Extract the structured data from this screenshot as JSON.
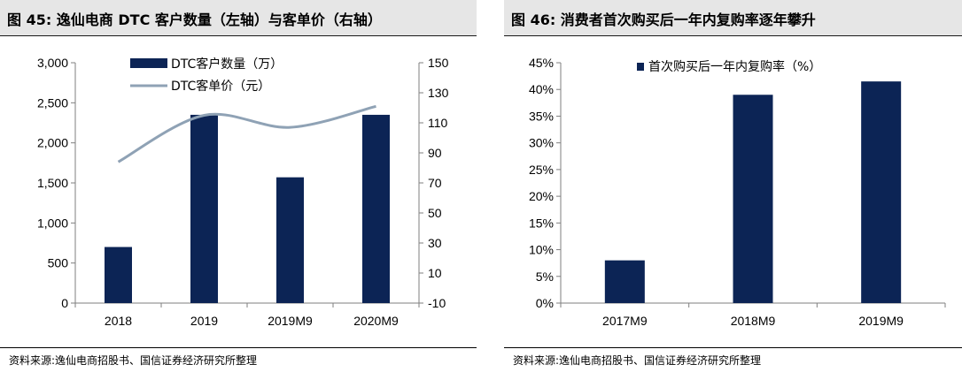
{
  "chart_data": [
    {
      "type": "bar",
      "title": "图 45:  逸仙电商 DTC 客户数量（左轴）与客单价（右轴）",
      "categories": [
        "2018",
        "2019",
        "2019M9",
        "2020M9"
      ],
      "series": [
        {
          "name": "DTC客户数量（万）",
          "type": "bar",
          "axis": "left",
          "values": [
            700,
            2350,
            1570,
            2350
          ]
        },
        {
          "name": "DTC客单价（元）",
          "type": "line",
          "axis": "right",
          "values": [
            84,
            115,
            107,
            121
          ]
        }
      ],
      "ylim_left": [
        0,
        3000
      ],
      "yticks_left": [
        "0",
        "500",
        "1,000",
        "1,500",
        "2,000",
        "2,500",
        "3,000"
      ],
      "ylim_right": [
        -10,
        150
      ],
      "yticks_right": [
        "-10",
        "10",
        "30",
        "50",
        "70",
        "90",
        "110",
        "130",
        "150"
      ],
      "grid": false,
      "legend": "top-center",
      "colors": {
        "bar": "#0c2455",
        "line": "#8fa2b5"
      },
      "source": "资料来源:逸仙电商招股书、国信证券经济研究所整理"
    },
    {
      "type": "bar",
      "title": "图 46:  消费者首次购买后一年内复购率逐年攀升",
      "categories": [
        "2017M9",
        "2018M9",
        "2019M9"
      ],
      "series": [
        {
          "name": "首次购买后一年内复购率（%）",
          "values": [
            8,
            39,
            41.5
          ]
        }
      ],
      "ylim": [
        0,
        45
      ],
      "yticks": [
        "0%",
        "5%",
        "10%",
        "15%",
        "20%",
        "25%",
        "30%",
        "35%",
        "40%",
        "45%"
      ],
      "grid": false,
      "legend": "top-left",
      "colors": {
        "bar": "#0c2455"
      },
      "source": "资料来源:逸仙电商招股书、国信证券经济研究所整理"
    }
  ]
}
